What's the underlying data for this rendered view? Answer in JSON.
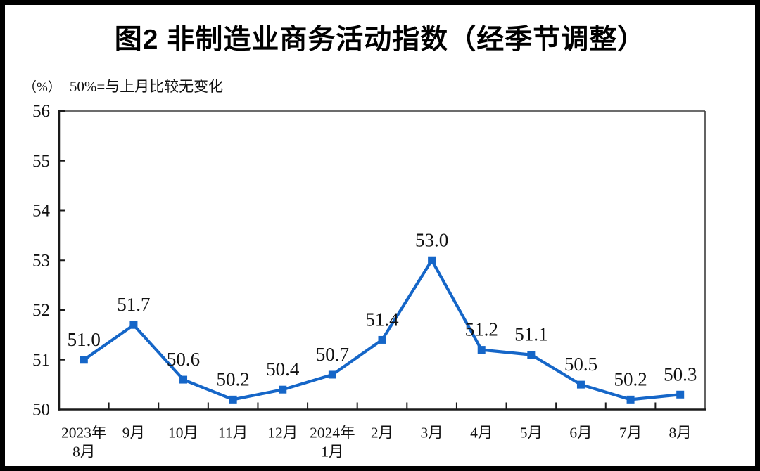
{
  "header": {
    "title": "图2  非制造业商务活动指数（经季节调整）",
    "unit_label": "（%）",
    "note": "50%=与上月比较无变化"
  },
  "chart_data": {
    "type": "line",
    "title": "图2 非制造业商务活动指数（经季节调整）",
    "subtitle_note": "50%=与上月比较无变化",
    "unit": "%",
    "categories": [
      "2023年\n8月",
      "9月",
      "10月",
      "11月",
      "12月",
      "2024年\n1月",
      "2月",
      "3月",
      "4月",
      "5月",
      "6月",
      "7月",
      "8月"
    ],
    "series": [
      {
        "name": "非制造业商务活动指数",
        "color": "#1566C8",
        "marker": "square",
        "values": [
          51.0,
          51.7,
          50.6,
          50.2,
          50.4,
          50.7,
          51.4,
          53.0,
          51.2,
          51.1,
          50.5,
          50.2,
          50.3
        ]
      }
    ],
    "data_labels": [
      "51.0",
      "51.7",
      "50.6",
      "50.2",
      "50.4",
      "50.7",
      "51.4",
      "53.0",
      "51.2",
      "51.1",
      "50.5",
      "50.2",
      "50.3"
    ],
    "yticks": [
      50,
      51,
      52,
      53,
      54,
      55,
      56
    ],
    "ylim": [
      50,
      56
    ],
    "xlabel": "",
    "ylabel": "",
    "grid": false,
    "legend_position": "none",
    "colors": {
      "line": "#1566C8",
      "axis": "#1a1a1a",
      "box": "#3c3c3c",
      "text": "#111111",
      "frame": "#000000",
      "background": "#ffffff"
    }
  }
}
